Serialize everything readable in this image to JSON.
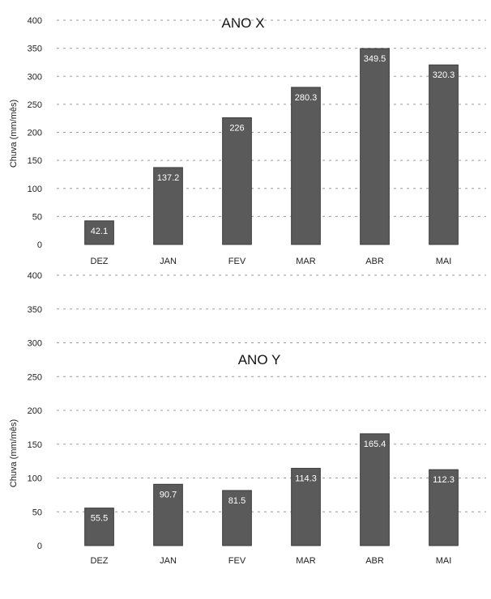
{
  "chart_data": [
    {
      "type": "bar",
      "title": "ANO X",
      "ylabel": "Chuva (mm/mês)",
      "xlabel": "",
      "ylim": [
        0,
        400
      ],
      "yticks": [
        0,
        50,
        100,
        150,
        200,
        250,
        300,
        350,
        400
      ],
      "grid": true,
      "categories": [
        "DEZ",
        "JAN",
        "FEV",
        "MAR",
        "ABR",
        "MAI"
      ],
      "values": [
        42.1,
        137.2,
        226,
        280.3,
        349.5,
        320.3
      ],
      "data_labels": [
        "42.1",
        "137.2",
        "226",
        "280.3",
        "349.5",
        "320.3"
      ],
      "bar_color": "#5a5a5a"
    },
    {
      "type": "bar",
      "title": "ANO Y",
      "ylabel": "Chuva (mm/mês)",
      "xlabel": "",
      "ylim": [
        0,
        400
      ],
      "yticks": [
        0,
        50,
        100,
        150,
        200,
        250,
        300,
        350,
        400
      ],
      "grid": true,
      "categories": [
        "DEZ",
        "JAN",
        "FEV",
        "MAR",
        "ABR",
        "MAI"
      ],
      "values": [
        55.5,
        90.7,
        81.5,
        114.3,
        165.4,
        112.3
      ],
      "data_labels": [
        "55.5",
        "90.7",
        "81.5",
        "114.3",
        "165.4",
        "112.3"
      ],
      "bar_color": "#5a5a5a"
    }
  ]
}
